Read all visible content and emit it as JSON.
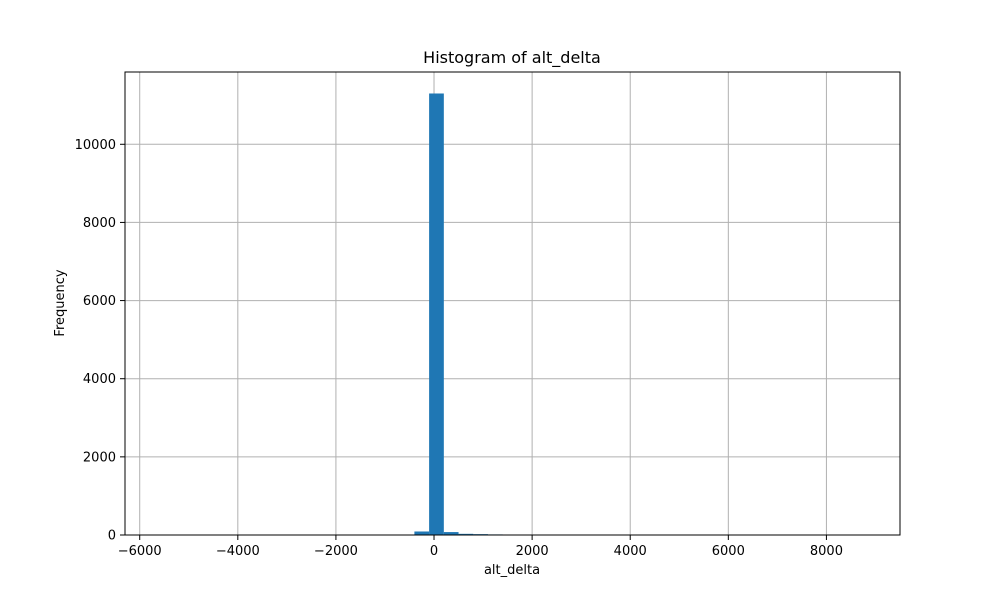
{
  "chart_data": {
    "type": "bar",
    "title": "Histogram of alt_delta",
    "xlabel": "alt_delta",
    "ylabel": "Frequency",
    "xlim": [
      -6300,
      9500
    ],
    "ylim": [
      0,
      11850
    ],
    "xticks": [
      -6000,
      -4000,
      -2000,
      0,
      2000,
      4000,
      6000,
      8000
    ],
    "xtick_labels": [
      "−6000",
      "−4000",
      "−2000",
      "0",
      "2000",
      "4000",
      "6000",
      "8000"
    ],
    "yticks": [
      0,
      2000,
      4000,
      6000,
      8000,
      10000
    ],
    "ytick_labels": [
      "0",
      "2000",
      "4000",
      "6000",
      "8000",
      "10000"
    ],
    "grid": true,
    "bar_color": "#1f77b4",
    "bins": [
      {
        "x0": -1000,
        "x1": -700,
        "value": 3
      },
      {
        "x0": -700,
        "x1": -400,
        "value": 12
      },
      {
        "x0": -400,
        "x1": -100,
        "value": 90
      },
      {
        "x0": -100,
        "x1": 200,
        "value": 11300
      },
      {
        "x0": 200,
        "x1": 500,
        "value": 75
      },
      {
        "x0": 500,
        "x1": 800,
        "value": 30
      },
      {
        "x0": 800,
        "x1": 1100,
        "value": 22
      },
      {
        "x0": 1100,
        "x1": 1400,
        "value": 15
      },
      {
        "x0": 1400,
        "x1": 1700,
        "value": 10
      },
      {
        "x0": 1700,
        "x1": 2000,
        "value": 6
      },
      {
        "x0": 2000,
        "x1": 2300,
        "value": 3
      },
      {
        "x0": 2300,
        "x1": 2600,
        "value": 2
      }
    ]
  }
}
